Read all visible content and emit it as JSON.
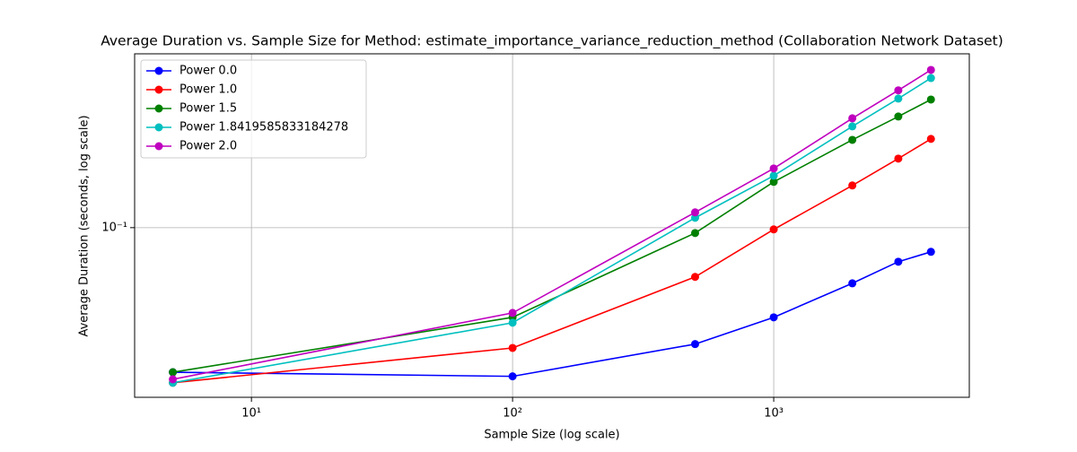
{
  "chart_data": {
    "type": "line",
    "title": "Average Duration vs. Sample Size for Method: estimate_importance_variance_reduction_method (Collaboration Network Dataset)",
    "x_label": "Sample Size (log scale)",
    "y_label": "Average Duration (seconds, log scale)",
    "x": [
      5,
      100,
      500,
      1000,
      2000,
      3000,
      4000
    ],
    "series": [
      {
        "name": "Power 0.0",
        "color": "#0000ff",
        "values": [
          0.029,
          0.028,
          0.0369,
          0.0464,
          0.0621,
          0.0747,
          0.0813
        ]
      },
      {
        "name": "Power 1.0",
        "color": "#ff0000",
        "values": [
          0.0265,
          0.0357,
          0.0656,
          0.0985,
          0.1435,
          0.1806,
          0.2138
        ]
      },
      {
        "name": "Power 1.5",
        "color": "#008000",
        "values": [
          0.029,
          0.0464,
          0.0955,
          0.148,
          0.212,
          0.259,
          0.2995
        ]
      },
      {
        "name": "Power 1.8419585833184278",
        "color": "#00bfbf",
        "values": [
          0.0265,
          0.0443,
          0.1088,
          0.156,
          0.238,
          0.302,
          0.36
        ]
      },
      {
        "name": "Power 2.0",
        "color": "#bf00bf",
        "values": [
          0.0273,
          0.0482,
          0.114,
          0.166,
          0.255,
          0.324,
          0.386
        ]
      }
    ],
    "xlim": [
      3.57,
      5610
    ],
    "ylim": [
      0.0234,
      0.443
    ],
    "xticks": [
      {
        "value": 10,
        "label": "10¹"
      },
      {
        "value": 100,
        "label": "10²"
      },
      {
        "value": 1000,
        "label": "10³"
      }
    ],
    "yticks": [
      {
        "value": 0.1,
        "label": "10⁻¹"
      }
    ],
    "x_log": true,
    "y_log": true,
    "grid": true,
    "legend": "upper left"
  }
}
